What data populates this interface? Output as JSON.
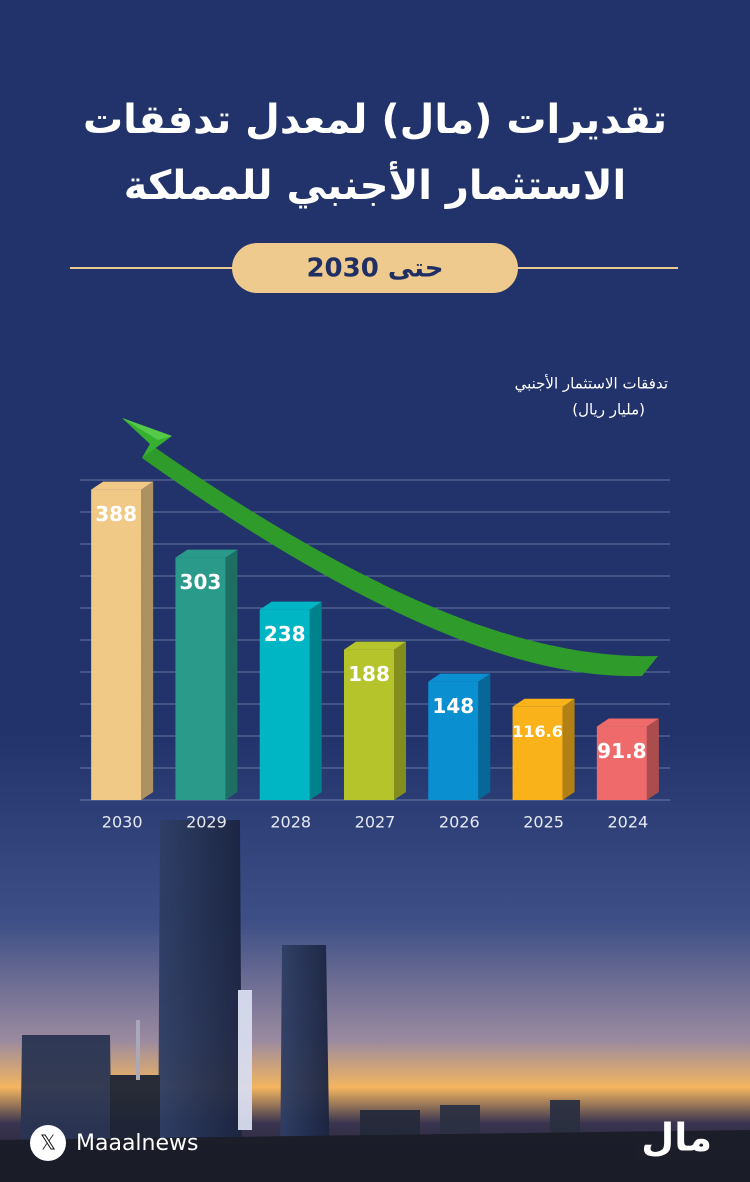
{
  "chart_data": {
    "type": "bar",
    "title_lines": [
      "تقديرات (مال) لمعدل تدفقات",
      "الاستثمار الأجنبي للمملكة"
    ],
    "subtitle": "حتى 2030",
    "y_label": [
      "تدفقات الاستثمار الأجنبي",
      "(مليار ريال)"
    ],
    "categories": [
      "2030",
      "2029",
      "2028",
      "2027",
      "2026",
      "2025",
      "2024"
    ],
    "values": [
      388,
      303,
      238,
      188,
      148,
      116.6,
      91.8
    ],
    "colors": [
      "#f0c987",
      "#2a9a8a",
      "#00b5c4",
      "#b5c42a",
      "#0a8fd0",
      "#f9b21a",
      "#ef6b6b"
    ],
    "ylim": [
      0,
      400
    ],
    "yticks": [
      0,
      40,
      80,
      120,
      160,
      200,
      240,
      280,
      320,
      360,
      400
    ],
    "grid": true,
    "source": "Maaalnews",
    "logo": "مال"
  }
}
